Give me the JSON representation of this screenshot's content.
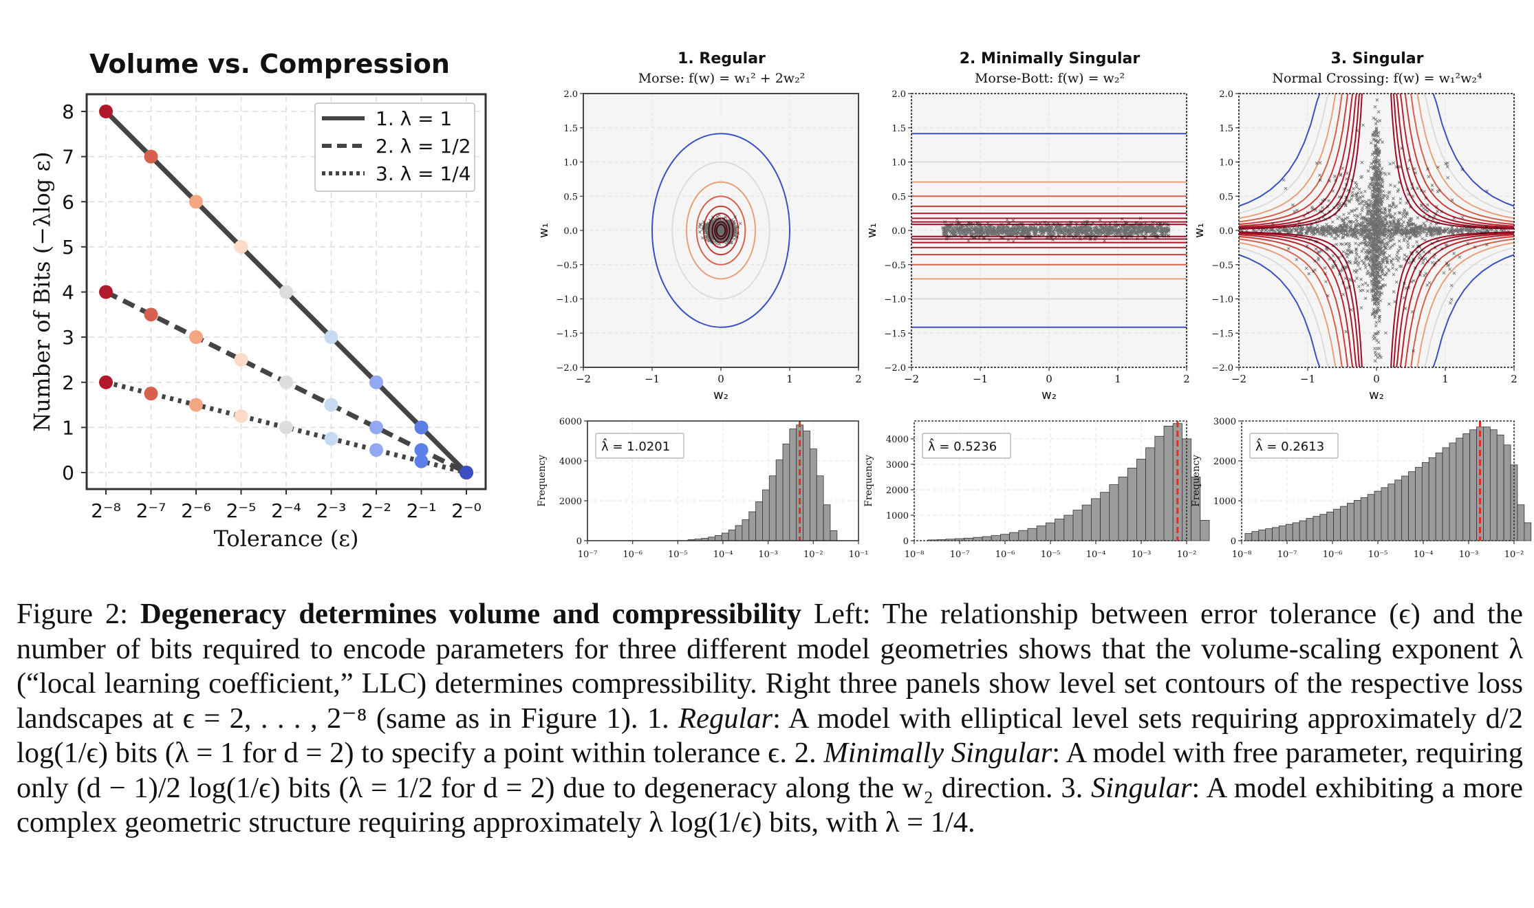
{
  "left_chart": {
    "title": "Volume vs.  Compression",
    "ylabel": "Number of Bits (−λlog ε)",
    "xlabel": "Tolerance (ε)",
    "x_ticks": [
      "2⁻⁸",
      "2⁻⁷",
      "2⁻⁶",
      "2⁻⁵",
      "2⁻⁴",
      "2⁻³",
      "2⁻²",
      "2⁻¹",
      "2⁻⁰"
    ],
    "y_ticks": [
      "0",
      "1",
      "2",
      "3",
      "4",
      "5",
      "6",
      "7",
      "8"
    ],
    "legend": [
      "1. λ = 1",
      "2. λ = 1/2",
      "3. λ = 1/4"
    ]
  },
  "contour_panels": [
    {
      "title": "1.  Regular",
      "subtitle": "Morse: f(w) = w₁² + 2w₂²"
    },
    {
      "title": "2.  Minimally Singular",
      "subtitle": "Morse-Bott: f(w) = w₂²"
    },
    {
      "title": "3.  Singular",
      "subtitle": "Normal Crossing: f(w) = w₁²w₂⁴"
    }
  ],
  "contour_axes": {
    "xlabel": "w₂",
    "ylabel": "w₁",
    "x_ticks": [
      "−2",
      "−1",
      "0",
      "1",
      "2"
    ],
    "y_ticks": [
      "2.0",
      "1.5",
      "1.0",
      "0.5",
      "0.0",
      "−0.5",
      "−1.0",
      "−1.5",
      "−2.0"
    ]
  },
  "hist_panels": [
    {
      "label": "λ̂ = 1.0201",
      "y_ticks": [
        "0",
        "2000",
        "4000",
        "6000"
      ],
      "x_ticks": [
        "10⁻⁷",
        "10⁻⁶",
        "10⁻⁵",
        "10⁻⁴",
        "10⁻³",
        "10⁻²",
        "10⁻¹"
      ]
    },
    {
      "label": "λ̂ = 0.5236",
      "y_ticks": [
        "0",
        "1000",
        "2000",
        "3000",
        "4000"
      ],
      "x_ticks": [
        "10⁻⁸",
        "10⁻⁷",
        "10⁻⁶",
        "10⁻⁵",
        "10⁻⁴",
        "10⁻³",
        "10⁻²"
      ]
    },
    {
      "label": "λ̂ = 0.2613",
      "y_ticks": [
        "0",
        "1000",
        "2000",
        "3000"
      ],
      "x_ticks": [
        "10⁻⁸",
        "10⁻⁷",
        "10⁻⁶",
        "10⁻⁵",
        "10⁻⁴",
        "10⁻³",
        "10⁻²"
      ]
    }
  ],
  "hist_ylabel": "Frequency",
  "caption": {
    "label": "Figure 2: ",
    "bold": "Degeneracy determines volume and compressibility",
    "p1": " Left: The relationship between error tolerance (ϵ) and the number of bits required to encode parameters for three different model geometries shows that the volume-scaling exponent λ (“local learning coefficient,” LLC) determines compressibility. Right three panels show level set contours of the respective loss landscapes at ϵ = 2, . . . , 2⁻⁸ (same as in Figure 1). 1. ",
    "regular": "Regular",
    "p2": ": A model with elliptical level sets requiring approximately d/2 log(1/ϵ) bits (λ = 1 for d = 2) to specify a point within tolerance ϵ. 2. ",
    "minimally": "Minimally Singular",
    "p3": ": A model with free parameter, requiring only (d − 1)/2 log(1/ϵ) bits (λ = 1/2 for d = 2) due to degeneracy along the w₂ direction. 3. ",
    "singular": "Singular",
    "p4": ": A model exhibiting a more complex geometric structure requiring approximately λ log(1/ϵ) bits, with λ = 1/4."
  },
  "chart_data": [
    {
      "type": "line",
      "title": "Volume vs.  Compression",
      "xlabel": "Tolerance (ε)",
      "ylabel": "Number of Bits (−λlog ε)",
      "x": [
        -8,
        -7,
        -6,
        -5,
        -4,
        -3,
        -2,
        -1,
        0
      ],
      "ylim": [
        0,
        8
      ],
      "legend_position": "top-right",
      "grid": true,
      "series": [
        {
          "name": "1. λ = 1",
          "style": "solid",
          "values": [
            8,
            7,
            6,
            5,
            4,
            3,
            2,
            1,
            0
          ]
        },
        {
          "name": "2. λ = 1/2",
          "style": "dashed",
          "values": [
            4,
            3.5,
            3,
            2.5,
            2,
            1.5,
            1,
            0.5,
            0
          ]
        },
        {
          "name": "3. λ = 1/4",
          "style": "dotted",
          "values": [
            2,
            1.75,
            1.5,
            1.25,
            1,
            0.75,
            0.5,
            0.25,
            0
          ]
        }
      ],
      "point_colors": [
        "#b2182b",
        "#d6604d",
        "#f4a582",
        "#fddbc7",
        "#dddddd",
        "#c6dbef",
        "#92a8f0",
        "#5b7fe6",
        "#3a4fc4"
      ]
    },
    {
      "type": "heatmap",
      "title": "1.  Regular",
      "xlim": [
        -2,
        2
      ],
      "ylim": [
        -2,
        2
      ],
      "levels": [
        2,
        1,
        0.5,
        0.25,
        0.125,
        0.0625,
        0.03125,
        0.015625,
        0.0078125
      ]
    },
    {
      "type": "heatmap",
      "title": "2.  Minimally Singular",
      "xlim": [
        -2,
        2
      ],
      "ylim": [
        -2,
        2
      ],
      "levels": [
        2,
        1,
        0.5,
        0.25,
        0.125,
        0.0625,
        0.03125,
        0.015625,
        0.0078125
      ]
    },
    {
      "type": "heatmap",
      "title": "3.  Singular",
      "xlim": [
        -2,
        2
      ],
      "ylim": [
        -2,
        2
      ],
      "levels": [
        2,
        1,
        0.5,
        0.25,
        0.125,
        0.0625,
        0.03125,
        0.015625,
        0.0078125
      ]
    },
    {
      "type": "bar",
      "title": "",
      "ylabel": "Frequency",
      "log_x": true,
      "xlim_exp": [
        -7,
        -1
      ],
      "ylim": [
        0,
        6000
      ],
      "estimate": 1.0201,
      "log_centers": [
        -4.7,
        -4.55,
        -4.4,
        -4.25,
        -4.1,
        -3.95,
        -3.8,
        -3.65,
        -3.5,
        -3.35,
        -3.2,
        -3.05,
        -2.9,
        -2.75,
        -2.6,
        -2.45,
        -2.3,
        -2.15,
        -2.0,
        -1.85,
        -1.7,
        -1.55
      ],
      "values": [
        50,
        80,
        120,
        180,
        260,
        380,
        540,
        760,
        1050,
        1450,
        1950,
        2550,
        3250,
        4050,
        4850,
        5600,
        5800,
        5500,
        4600,
        3250,
        1800,
        500
      ]
    },
    {
      "type": "bar",
      "title": "",
      "ylabel": "Frequency",
      "log_x": true,
      "xlim_exp": [
        -8,
        -2
      ],
      "ylim": [
        0,
        4700
      ],
      "estimate": 0.5236,
      "log_centers": [
        -7.6,
        -7.4,
        -7.2,
        -7.0,
        -6.8,
        -6.6,
        -6.4,
        -6.2,
        -6.0,
        -5.8,
        -5.6,
        -5.4,
        -5.2,
        -5.0,
        -4.8,
        -4.6,
        -4.4,
        -4.2,
        -4.0,
        -3.8,
        -3.6,
        -3.4,
        -3.2,
        -3.0,
        -2.8,
        -2.6,
        -2.4,
        -2.2,
        -2.0,
        -1.8,
        -1.6
      ],
      "values": [
        30,
        40,
        60,
        80,
        100,
        130,
        160,
        200,
        250,
        320,
        400,
        480,
        580,
        700,
        850,
        1000,
        1200,
        1400,
        1650,
        1900,
        2200,
        2500,
        2850,
        3200,
        3650,
        4100,
        4500,
        4600,
        4000,
        2500,
        800
      ]
    },
    {
      "type": "bar",
      "title": "",
      "ylabel": "Frequency",
      "log_x": true,
      "xlim_exp": [
        -8,
        -2
      ],
      "ylim": [
        0,
        3000
      ],
      "estimate": 0.2613,
      "log_centers": [
        -7.85,
        -7.7,
        -7.55,
        -7.4,
        -7.25,
        -7.1,
        -6.95,
        -6.8,
        -6.65,
        -6.5,
        -6.35,
        -6.2,
        -6.05,
        -5.9,
        -5.75,
        -5.6,
        -5.45,
        -5.3,
        -5.15,
        -5.0,
        -4.85,
        -4.7,
        -4.55,
        -4.4,
        -4.25,
        -4.1,
        -3.95,
        -3.8,
        -3.65,
        -3.5,
        -3.35,
        -3.2,
        -3.05,
        -2.9,
        -2.75,
        -2.6,
        -2.45,
        -2.3,
        -2.15,
        -2.0,
        -1.85,
        -1.7
      ],
      "values": [
        180,
        230,
        270,
        300,
        330,
        370,
        410,
        450,
        500,
        560,
        610,
        660,
        720,
        790,
        860,
        940,
        1010,
        1080,
        1160,
        1240,
        1330,
        1420,
        1520,
        1620,
        1730,
        1840,
        1960,
        2080,
        2200,
        2330,
        2450,
        2570,
        2680,
        2780,
        2850,
        2850,
        2780,
        2650,
        2400,
        1900,
        900,
        450
      ]
    }
  ]
}
